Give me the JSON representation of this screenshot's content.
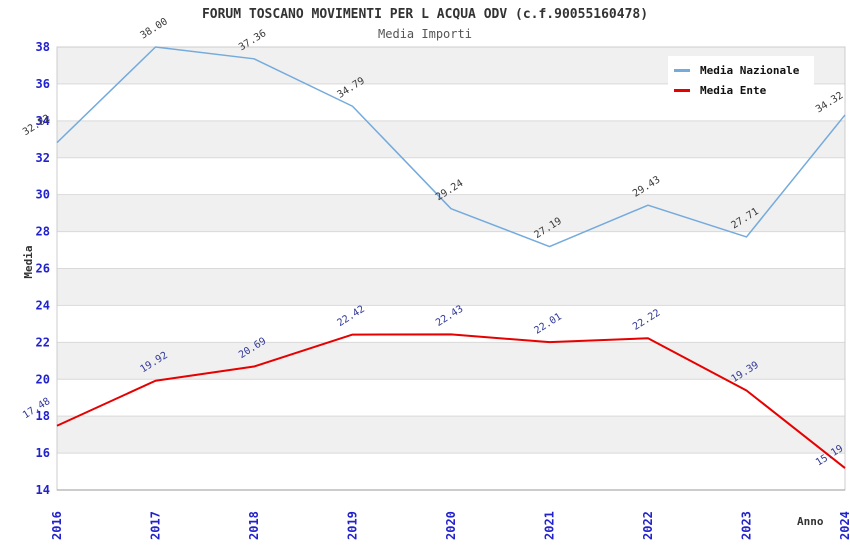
{
  "header": {
    "title": "FORUM TOSCANO MOVIMENTI PER L ACQUA ODV (c.f.90055160478)",
    "subtitle": "Media Importi"
  },
  "legend": {
    "position": "top-right",
    "items": [
      {
        "label": "Media Nazionale",
        "color": "#74aadc"
      },
      {
        "label": "Media Ente",
        "color": "#e60000"
      }
    ]
  },
  "axes": {
    "y_title": "Media",
    "x_title": "Anno",
    "tick_label_color": "#2222cc"
  },
  "style": {
    "band_color": "#f0f0f0",
    "grid_color": "#d9d9d9",
    "border_color": "#cccccc",
    "axis_color": "#999999"
  },
  "chart_data": {
    "type": "line",
    "title": "FORUM TOSCANO MOVIMENTI PER L ACQUA ODV (c.f.90055160478)",
    "subtitle": "Media Importi",
    "xlabel": "Anno",
    "ylabel": "Media",
    "categories": [
      "2016",
      "2017",
      "2018",
      "2019",
      "2020",
      "2021",
      "2022",
      "2023",
      "2024"
    ],
    "series": [
      {
        "name": "Media Nazionale",
        "color": "#74aadc",
        "label_color": "#3a3a3a",
        "values": [
          32.82,
          38.0,
          37.36,
          34.79,
          29.24,
          27.19,
          29.43,
          27.71,
          34.32
        ]
      },
      {
        "name": "Media Ente",
        "color": "#e60000",
        "label_color": "#333a99",
        "values": [
          17.48,
          19.92,
          20.69,
          22.42,
          22.43,
          22.01,
          22.22,
          19.39,
          15.19
        ]
      }
    ],
    "ylim": [
      14,
      38
    ],
    "ytick_step": 2,
    "yticks": [
      38,
      36,
      34,
      32,
      30,
      28,
      26,
      24,
      22,
      20,
      18,
      16,
      14
    ],
    "grid": "horizontal-bands",
    "legend_position": "top-right",
    "point_labels_decimals": 2
  }
}
